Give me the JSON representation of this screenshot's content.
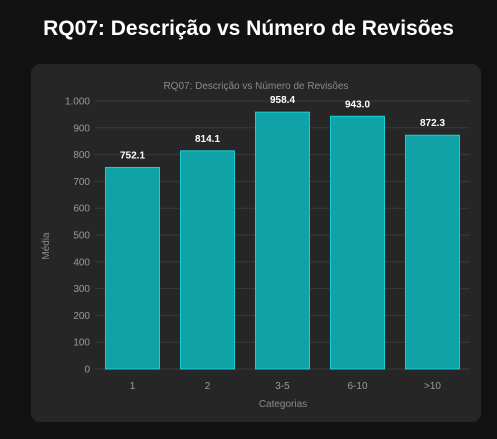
{
  "page": {
    "title": "RQ07: Descrição vs Número de Revisões"
  },
  "chart_data": {
    "type": "bar",
    "title": "RQ07: Descrição vs Número de Revisões",
    "xlabel": "Categorias",
    "ylabel": "Média",
    "categories": [
      "1",
      "2",
      "3-5",
      "6-10",
      ">10"
    ],
    "values": [
      752.1,
      814.1,
      958.4,
      943.0,
      872.3
    ],
    "value_labels": [
      "752.1",
      "814.1",
      "958.4",
      "943.0",
      "872.3"
    ],
    "ylim": [
      0,
      1000
    ],
    "yticks": [
      0,
      100,
      200,
      300,
      400,
      500,
      600,
      700,
      800,
      900,
      1000
    ],
    "ytick_labels": [
      "0",
      "100",
      "200",
      "300",
      "400",
      "500",
      "600",
      "700",
      "800",
      "900",
      "1.000"
    ],
    "grid": true,
    "legend": "none",
    "colors": {
      "bar_fill": "#0fa3a7",
      "bar_stroke": "#19cfd3",
      "grid": "#3a3a3a",
      "tick_text": "#9a9a9a",
      "value_text": "#ffffff",
      "title_text": "#8a8a8a"
    }
  }
}
